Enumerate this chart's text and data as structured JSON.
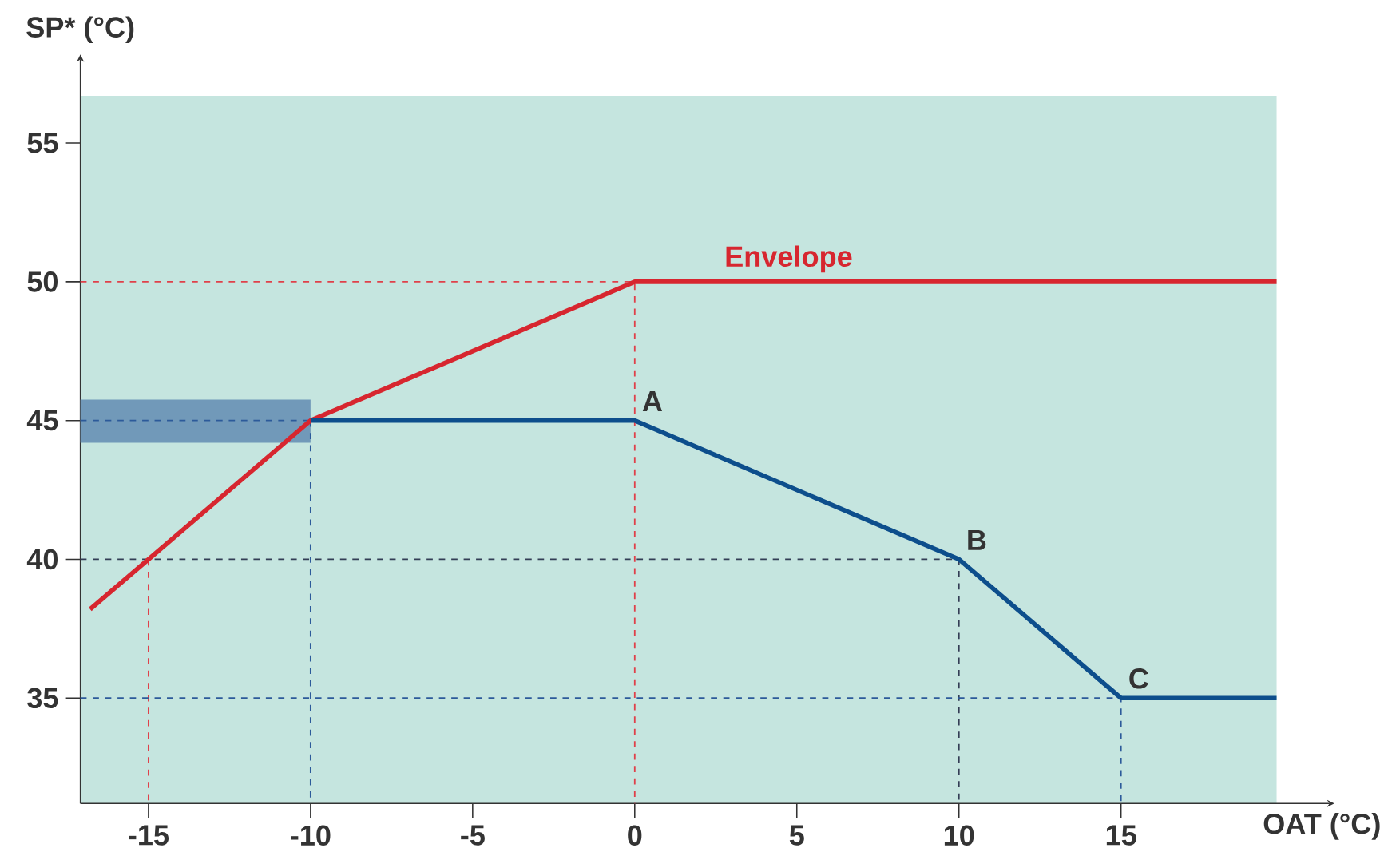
{
  "chart_data": {
    "type": "line",
    "xlabel": "OAT (°C)",
    "ylabel": "SP* (°C)",
    "xlim": [
      -17.1,
      19.8
    ],
    "ylim": [
      31.2,
      56.7
    ],
    "xticks": [
      -15,
      -10,
      -5,
      0,
      5,
      10,
      15
    ],
    "yticks": [
      35,
      40,
      45,
      50,
      55
    ],
    "grid": false,
    "legend": false,
    "series": [
      {
        "color": "#2c5a9a",
        "line_style": "dashed",
        "x": [
          -17.1,
          -10
        ],
        "values": [
          45,
          45
        ],
        "lower": [
          44.2,
          44.2
        ],
        "upper": [
          45.75,
          45.75
        ]
      },
      {
        "color": "#e0404a",
        "line_style": "dashed",
        "x": [
          -17.1,
          0,
          0
        ],
        "values": [
          50,
          50,
          31.2
        ]
      },
      {
        "color": "#e0404a",
        "line_style": "dashed",
        "x": [
          -15,
          -15
        ],
        "values": [
          40,
          31.2
        ]
      },
      {
        "color": "#333d55",
        "line_style": "dashed",
        "x": [
          -17.1,
          10,
          10
        ],
        "values": [
          40,
          40,
          31.2
        ]
      },
      {
        "color": "#2c5a9a",
        "line_style": "dashed",
        "x": [
          -10,
          -10
        ],
        "values": [
          45,
          31.2
        ]
      },
      {
        "color": "#2c5a9a",
        "line_style": "dashed",
        "x": [
          -17.1,
          15,
          15
        ],
        "values": [
          35,
          35,
          31.2
        ]
      },
      {
        "name": "Envelope",
        "color": "#d7262f",
        "line_style": "solid",
        "x": [
          -16.8,
          -10,
          0,
          19.8
        ],
        "values": [
          38.2,
          45,
          50,
          50
        ]
      },
      {
        "color": "#0d4e8c",
        "line_style": "solid",
        "x": [
          -10,
          0,
          10,
          15,
          19.8
        ],
        "values": [
          45,
          45,
          40,
          35,
          35
        ]
      }
    ],
    "annotations": [
      {
        "text": "A",
        "x": 0,
        "y": 45
      },
      {
        "text": "B",
        "x": 10,
        "y": 40
      },
      {
        "text": "C",
        "x": 15,
        "y": 35
      }
    ]
  }
}
